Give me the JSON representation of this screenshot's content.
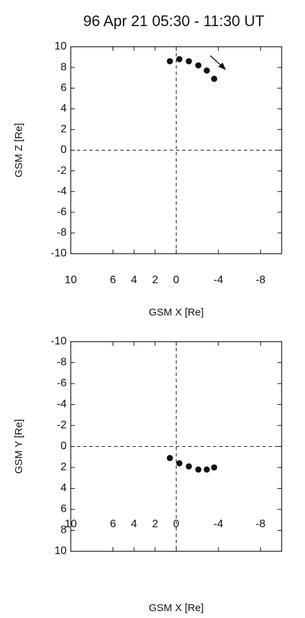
{
  "chart_data": [
    {
      "type": "scatter",
      "title": "96 Apr 21 05:30 - 11:30 UT",
      "xlabel": "GSM X [Re]",
      "ylabel": "GSM Z [Re]",
      "x": [
        0.6,
        -0.3,
        -1.2,
        -2.1,
        -2.9,
        -3.6
      ],
      "values": [
        8.6,
        8.8,
        8.6,
        8.2,
        7.7,
        6.9
      ],
      "color": "#111111",
      "xlim": [
        10,
        -10
      ],
      "ylim": [
        -10,
        10
      ],
      "xticks": [
        10,
        6,
        4,
        2,
        0,
        -4,
        -8
      ],
      "yticks": [
        -10,
        -8,
        -6,
        -4,
        -2,
        0,
        2,
        4,
        6,
        8,
        10
      ]
    },
    {
      "type": "scatter",
      "xlabel": "GSM X [Re]",
      "ylabel": "GSM Y [Re]",
      "x": [
        0.6,
        -0.3,
        -1.2,
        -2.1,
        -2.9,
        -3.6
      ],
      "values": [
        1.1,
        1.6,
        1.9,
        2.2,
        2.2,
        2.0
      ],
      "color": "#111111",
      "xlim": [
        10,
        -10
      ],
      "ylim": [
        10,
        -10
      ],
      "xticks": [
        10,
        6,
        4,
        2,
        0,
        -4,
        -8
      ],
      "yticks": [
        10,
        8,
        6,
        4,
        2,
        0,
        -2,
        -4,
        -6,
        -8,
        -10
      ]
    }
  ]
}
